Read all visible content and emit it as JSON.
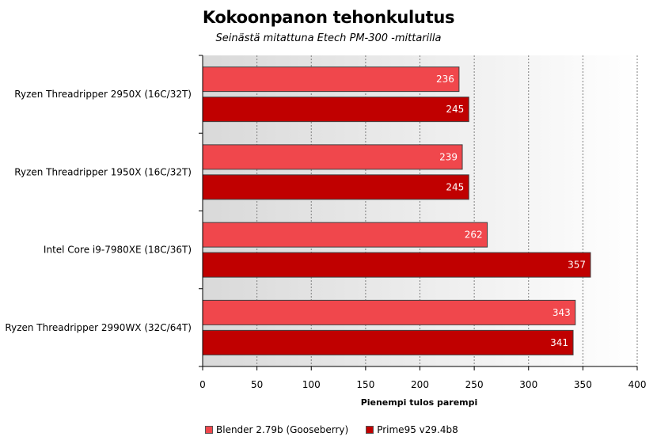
{
  "chart_data": {
    "type": "bar",
    "orientation": "horizontal",
    "title": "Kokoonpanon tehonkulutus",
    "subtitle": "Seinästä mitattuna Etech PM-300 -mittarilla",
    "xlabel": "Pienempi tulos parempi",
    "xlim": [
      0,
      400
    ],
    "xticks": [
      0,
      50,
      100,
      150,
      200,
      250,
      300,
      350,
      400
    ],
    "grid": true,
    "legend_position": "bottom",
    "categories": [
      "Ryzen Threadripper 2950X (16C/32T)",
      "Ryzen Threadripper 1950X (16C/32T)",
      "Intel Core i9-7980XE (18C/36T)",
      "Ryzen Threadripper 2990WX (32C/64T)"
    ],
    "series": [
      {
        "name": "Blender 2.79b (Gooseberry)",
        "color": "#f0474c",
        "values": [
          236,
          239,
          262,
          343
        ]
      },
      {
        "name": "Prime95 v29.4b8",
        "color": "#c00000",
        "values": [
          245,
          245,
          357,
          341
        ]
      }
    ]
  }
}
